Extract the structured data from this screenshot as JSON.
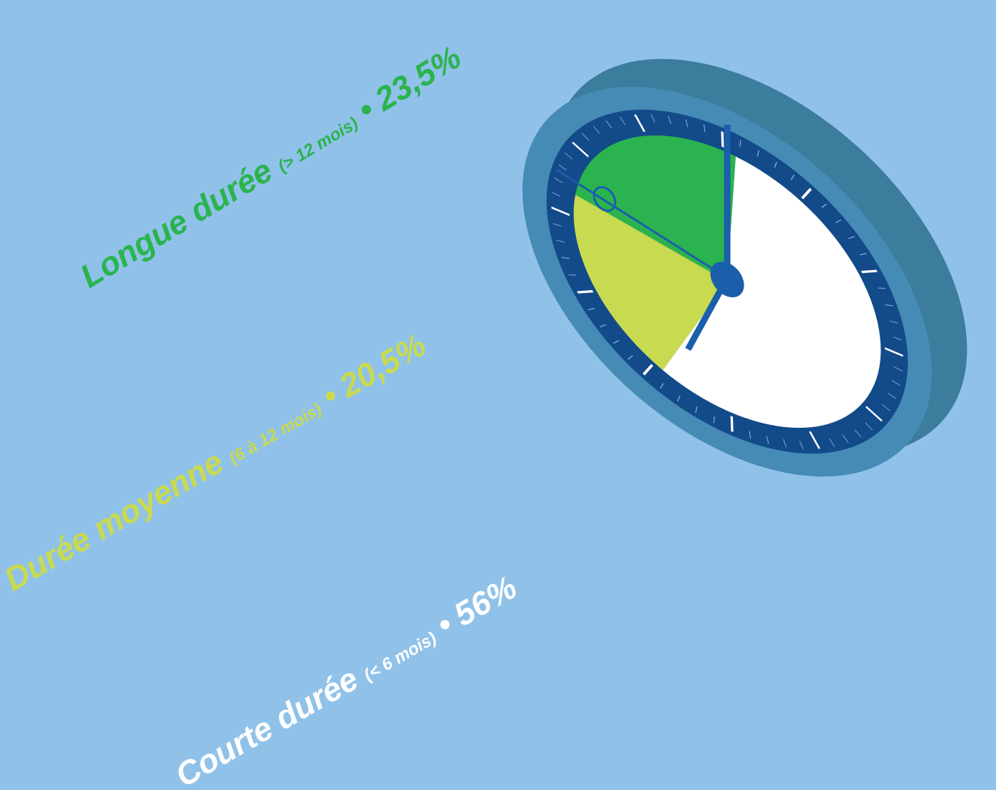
{
  "chart_data": {
    "type": "pie",
    "categories": [
      "Longue durée",
      "Durée moyenne",
      "Courte durée"
    ],
    "details": [
      "(> 12 mois)",
      "(6 à 12 mois)",
      "(< 6 mois)"
    ],
    "separator": "•",
    "values": [
      23.5,
      20.5,
      56
    ],
    "value_labels": [
      "23,5%",
      "20,5%",
      "56%"
    ],
    "colors": [
      "#2bb34f",
      "#c8da50",
      "#ffffff"
    ]
  }
}
